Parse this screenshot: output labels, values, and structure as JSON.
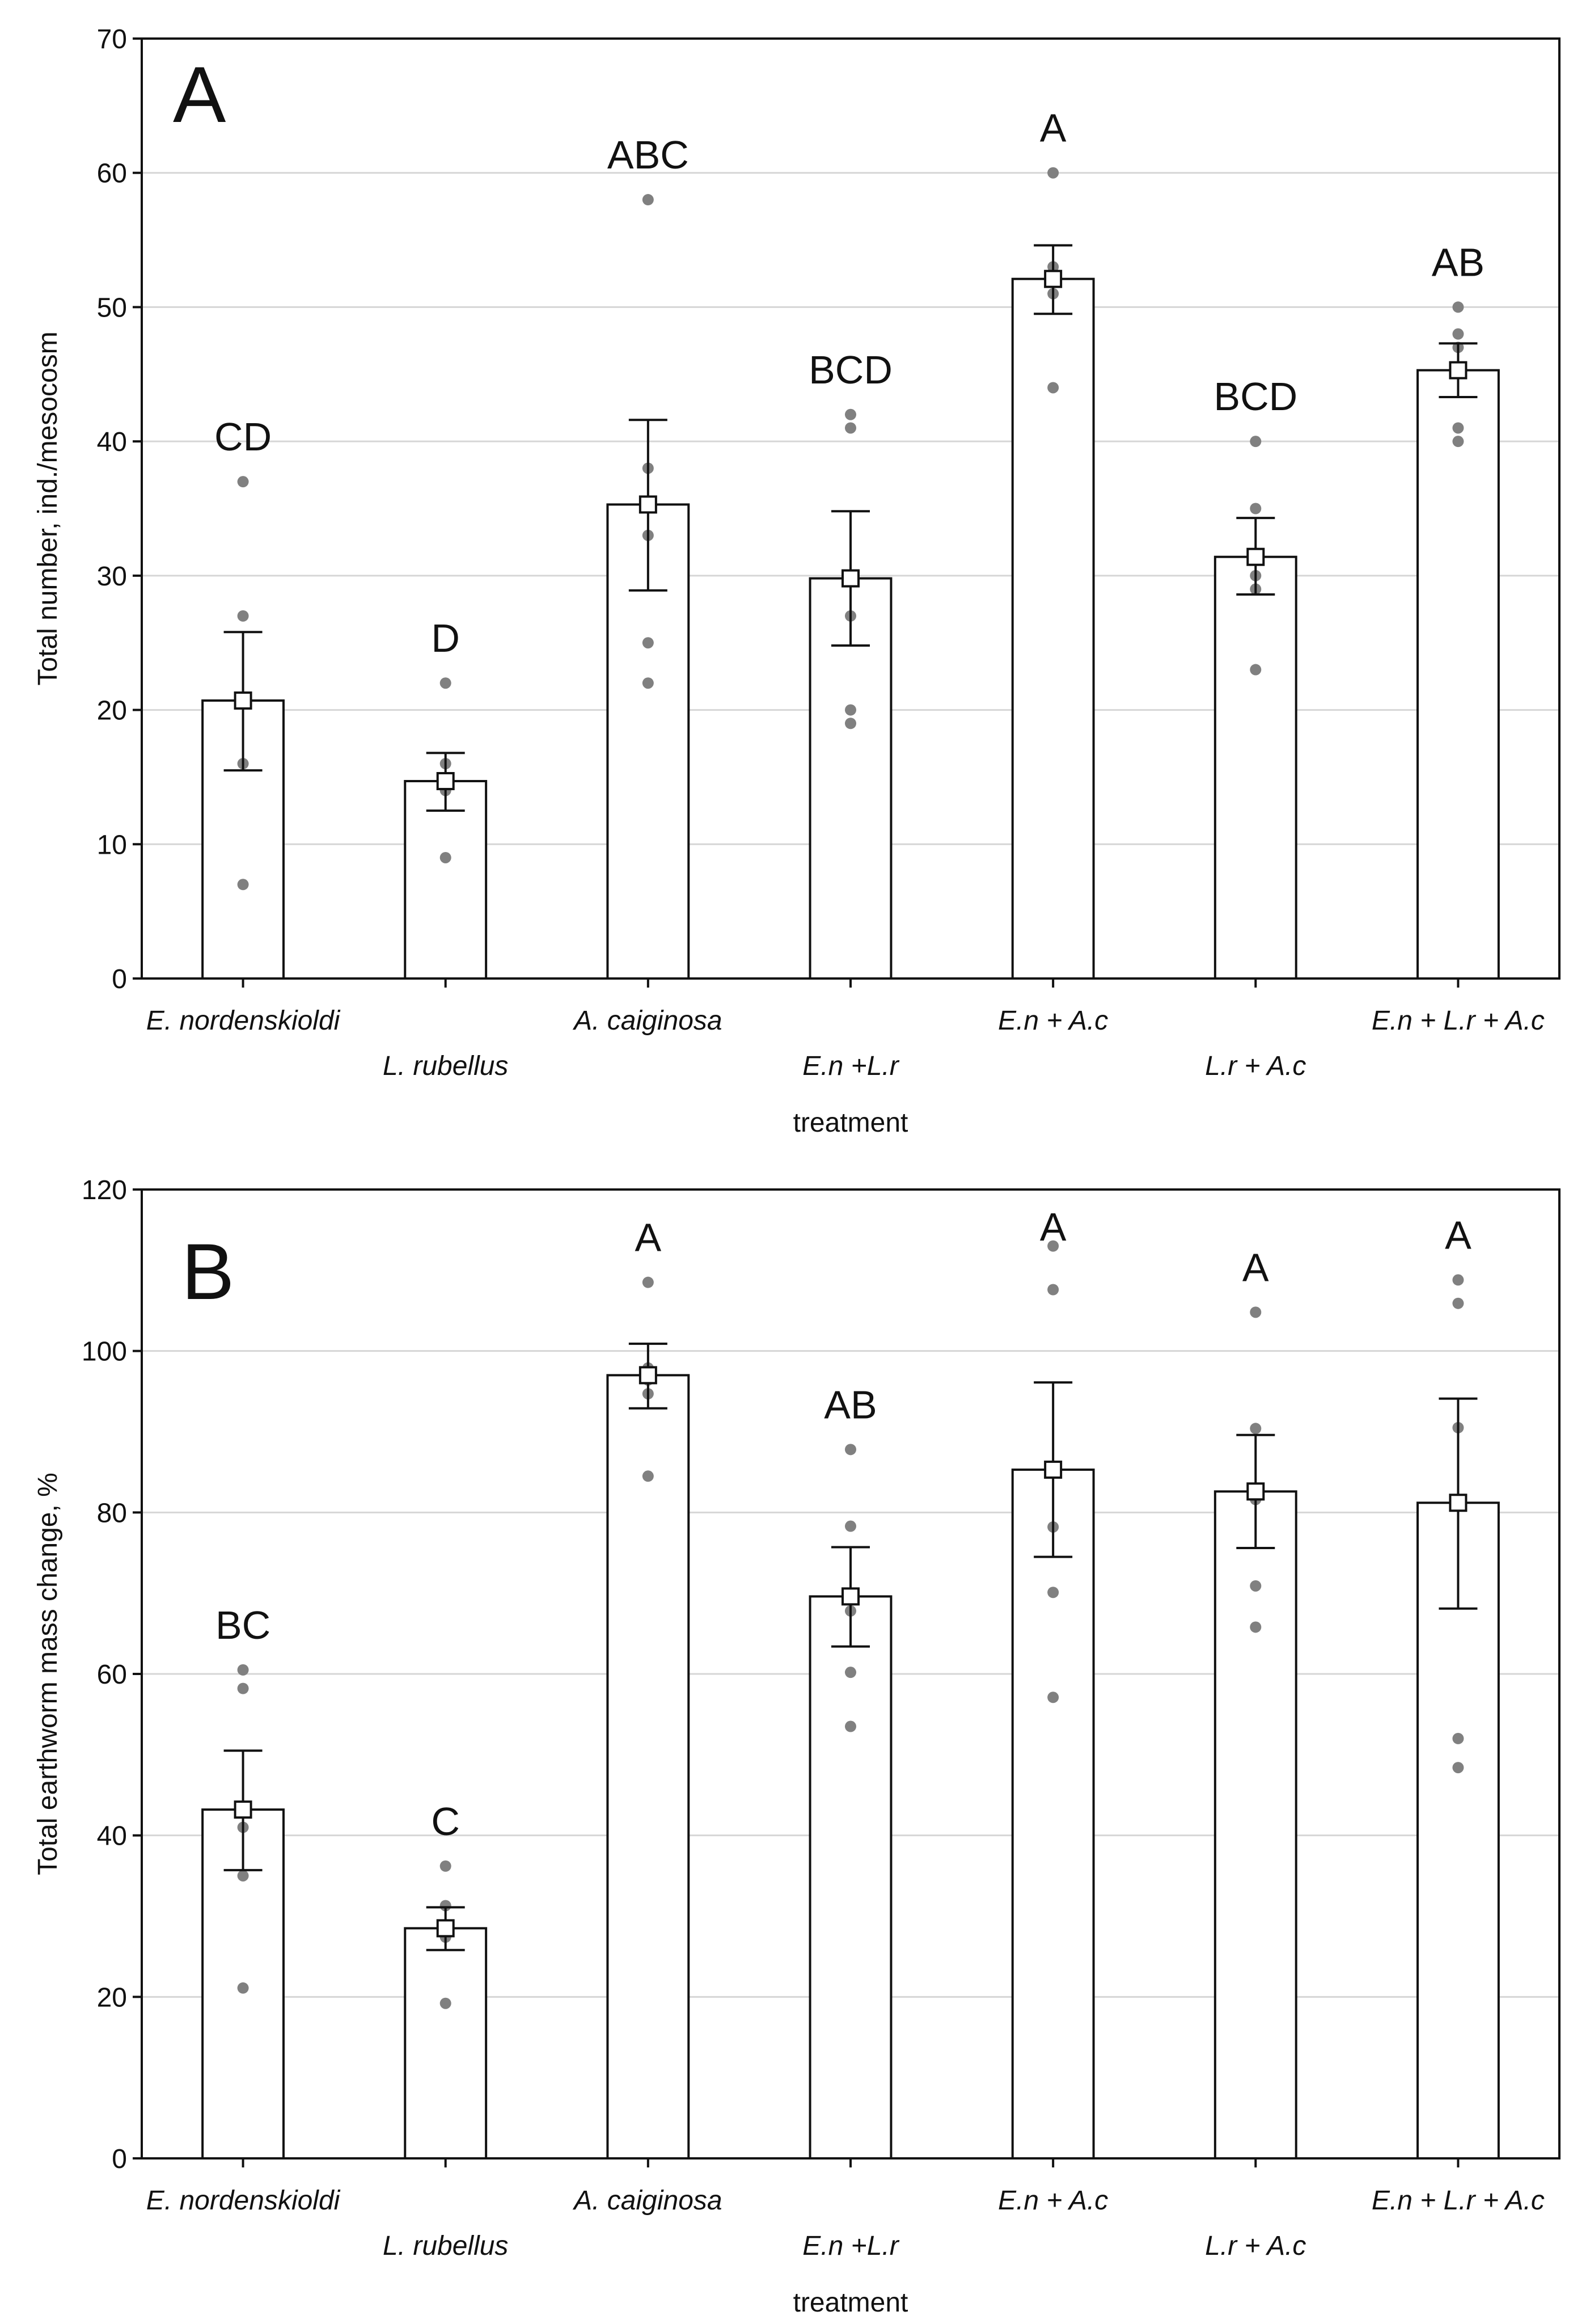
{
  "chart_data": [
    {
      "type": "bar",
      "panel": "A",
      "xlabel": "treatment",
      "ylabel": "Total number, ind./mesocosm",
      "ylim": [
        0,
        70
      ],
      "yticks": [
        0,
        10,
        20,
        30,
        40,
        50,
        60,
        70
      ],
      "grid": true,
      "categories": [
        "E. nordenskioldi",
        "L. rubellus",
        "A. caiginosa",
        "E.n +L.r",
        "E.n + A.c",
        "L.r + A.c",
        "E.n + L.r + A.c"
      ],
      "values": [
        20.7,
        14.7,
        35.3,
        29.8,
        52.1,
        31.4,
        45.3
      ],
      "error_low": [
        15.5,
        12.5,
        28.9,
        24.8,
        49.5,
        28.6,
        43.3
      ],
      "error_high": [
        25.8,
        16.8,
        41.6,
        34.8,
        54.6,
        34.3,
        47.3
      ],
      "points": [
        [
          37,
          27,
          16,
          7
        ],
        [
          22,
          16,
          14,
          9
        ],
        [
          58,
          38,
          33,
          25,
          22
        ],
        [
          42,
          41,
          27,
          20,
          19
        ],
        [
          60,
          53,
          52,
          51,
          44
        ],
        [
          40,
          35,
          30,
          29,
          23
        ],
        [
          50,
          48,
          47,
          41,
          40
        ]
      ],
      "letters": [
        "CD",
        "D",
        "ABC",
        "BCD",
        "A",
        "BCD",
        "AB"
      ],
      "colors": {
        "bar_fill": "#ffffff",
        "bar_edge": "#111111",
        "points": "#808080",
        "grid": "#d6d6d6"
      }
    },
    {
      "type": "bar",
      "panel": "B",
      "xlabel": "treatment",
      "ylabel": "Total earthworm mass change, %",
      "ylim": [
        0,
        120
      ],
      "yticks": [
        0,
        20,
        40,
        60,
        80,
        100,
        120
      ],
      "grid": true,
      "categories": [
        "E. nordenskioldi",
        "L. rubellus",
        "A. caiginosa",
        "E.n +L.r",
        "E.n + A.c",
        "L.r + A.c",
        "E.n + L.r + A.c"
      ],
      "values": [
        43.2,
        28.5,
        97.0,
        69.6,
        85.3,
        82.6,
        81.2
      ],
      "error_low": [
        35.7,
        25.8,
        92.9,
        63.4,
        74.5,
        75.6,
        68.1
      ],
      "error_high": [
        50.5,
        31.1,
        100.9,
        75.7,
        96.1,
        89.6,
        94.1
      ],
      "points": [
        [
          60.5,
          58.2,
          41.0,
          35.0,
          21.1
        ],
        [
          36.2,
          31.3,
          28.6,
          27.4,
          19.2
        ],
        [
          108.5,
          97.9,
          96.4,
          94.7,
          84.5
        ],
        [
          87.8,
          78.3,
          67.8,
          60.2,
          53.5
        ],
        [
          113.0,
          107.6,
          78.2,
          70.1,
          57.1
        ],
        [
          104.8,
          90.4,
          81.6,
          70.9,
          65.8
        ],
        [
          108.8,
          105.9,
          90.5,
          52.0,
          48.4
        ]
      ],
      "letters": [
        "BC",
        "C",
        "A",
        "AB",
        "A",
        "A",
        "A"
      ],
      "colors": {
        "bar_fill": "#ffffff",
        "bar_edge": "#111111",
        "points": "#808080",
        "grid": "#d6d6d6"
      }
    }
  ]
}
